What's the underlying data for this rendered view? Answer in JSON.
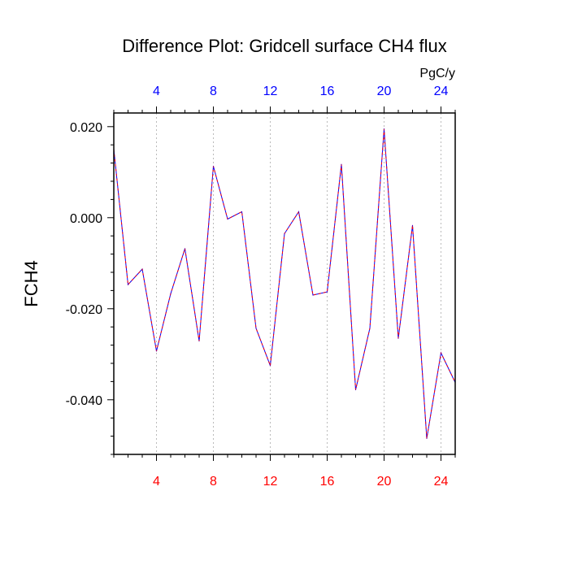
{
  "chart_data": {
    "type": "line",
    "title": "Difference Plot: Gridcell surface CH4 flux",
    "ylabel": "FCH4",
    "units_label": "PgC/y",
    "xlim": [
      1,
      25
    ],
    "ylim": [
      -0.052,
      0.023
    ],
    "x_ticks": [
      4,
      8,
      12,
      16,
      20,
      24
    ],
    "x_tick_labels": [
      "4",
      "8",
      "12",
      "16",
      "20",
      "24"
    ],
    "y_ticks": [
      0.02,
      0.0,
      -0.02,
      -0.04
    ],
    "y_tick_labels": [
      "0.020",
      "0.000",
      "-0.020",
      "-0.040"
    ],
    "grid": "vertical dotted at major x ticks",
    "top_axis_color": "#0000ff",
    "bottom_axis_color": "#ff0000",
    "line_colors": [
      "#0000ff",
      "#ff0000"
    ],
    "series": [
      {
        "x": [
          1,
          2,
          3,
          4,
          5,
          6,
          7,
          8,
          9,
          10,
          11,
          12,
          13,
          14,
          15,
          16,
          17,
          18,
          19,
          20,
          21,
          22,
          23,
          24,
          25
        ],
        "values": [
          0.015,
          -0.0147,
          -0.0113,
          -0.0293,
          -0.0167,
          -0.0068,
          -0.0271,
          0.0113,
          -0.0003,
          0.0013,
          -0.0243,
          -0.0325,
          -0.0035,
          0.0013,
          -0.017,
          -0.0163,
          0.0117,
          -0.0378,
          -0.0243,
          0.0195,
          -0.0265,
          -0.0017,
          -0.0485,
          -0.0297,
          -0.0362
        ]
      }
    ]
  }
}
